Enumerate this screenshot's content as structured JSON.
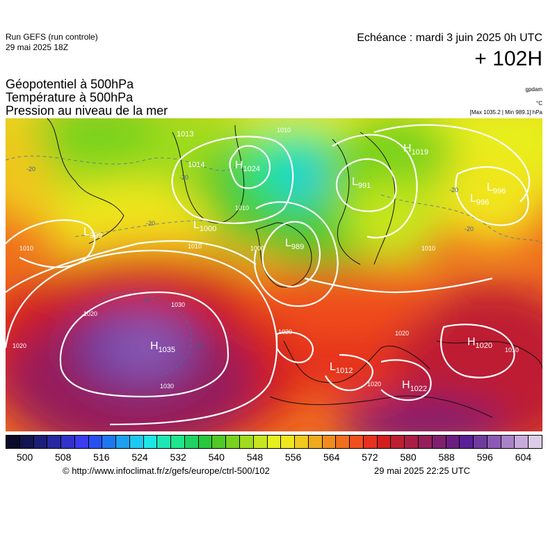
{
  "header": {
    "run_label": "Run GEFS (run controle)",
    "run_date": "29 mai 2025 18Z",
    "echeance": "Echéance : mardi 3 juin 2025 0h UTC",
    "horizon": "+ 102H",
    "parameters": [
      "Géopotentiel à 500hPa",
      "Température à 500hPa",
      "Pression au niveau de la mer"
    ],
    "units": [
      "gpdam",
      "°C",
      "[Max 1035.2 | Min 989.1] hPa"
    ]
  },
  "map": {
    "pressure_centers": [
      {
        "type": "H",
        "value": "1035"
      },
      {
        "type": "H",
        "value": "1024"
      },
      {
        "type": "H",
        "value": "1019"
      },
      {
        "type": "H",
        "value": "1020"
      },
      {
        "type": "H",
        "value": "1022"
      },
      {
        "type": "L",
        "value": "999"
      },
      {
        "type": "L",
        "value": "1000"
      },
      {
        "type": "L",
        "value": "989"
      },
      {
        "type": "L",
        "value": "991"
      },
      {
        "type": "L",
        "value": "996"
      },
      {
        "type": "L",
        "value": "996"
      },
      {
        "type": "L",
        "value": "1012"
      },
      {
        "type": "",
        "value": "1013"
      },
      {
        "type": "",
        "value": "1014"
      }
    ],
    "isobar_labels": [
      "1030",
      "1030",
      "1020",
      "1020",
      "1020",
      "1020",
      "1010",
      "1010",
      "1010",
      "1010",
      "1010",
      "1010",
      "1000",
      "1020"
    ],
    "temperature_labels": [
      "-20",
      "-20",
      "-20",
      "-20",
      "-20",
      "-10",
      "-10"
    ]
  },
  "colorbar": {
    "tick_labels": [
      "500",
      "508",
      "516",
      "524",
      "532",
      "540",
      "548",
      "556",
      "564",
      "572",
      "580",
      "588",
      "596",
      "604"
    ],
    "colors": [
      "#0a0a2a",
      "#141450",
      "#1e1e78",
      "#2828a0",
      "#3232c8",
      "#3c3cf0",
      "#2850f0",
      "#1e78f0",
      "#1ea0f0",
      "#1ec8f0",
      "#1ee6e6",
      "#1ee6b4",
      "#1ee68c",
      "#1ed264",
      "#28c83c",
      "#50c828",
      "#78d21e",
      "#a0dc1e",
      "#c8e61e",
      "#e6f01e",
      "#f0e61e",
      "#f0c81e",
      "#f0aa1e",
      "#f08c1e",
      "#f06e1e",
      "#f0501e",
      "#e6321e",
      "#d21e1e",
      "#be1e32",
      "#aa1e46",
      "#961e5a",
      "#821e6e",
      "#6e1e82",
      "#5a1e96",
      "#6e3ca0",
      "#8c5ab4",
      "#aa82c8",
      "#c8aadc",
      "#dccce8"
    ]
  },
  "footer": {
    "credit": "© http://www.infoclimat.fr/z/gefs/europe/ctrl-500/102",
    "generated": "29 mai 2025 22:25 UTC"
  }
}
